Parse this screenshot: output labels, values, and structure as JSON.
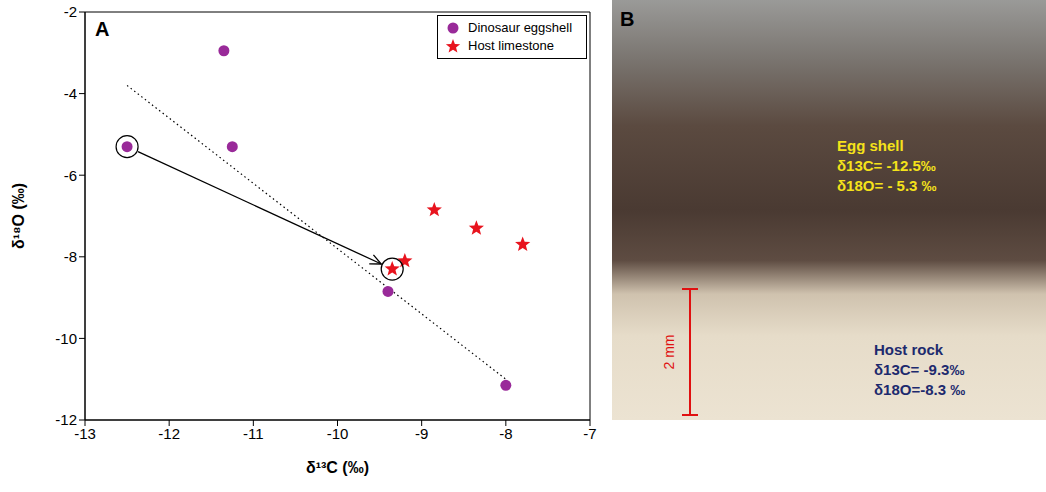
{
  "chart_data": {
    "type": "scatter",
    "panel_label": "A",
    "x_label": "δ¹³C (‰)",
    "y_label": "δ¹⁸O (‰)",
    "xlim": [
      -13,
      -7
    ],
    "xticks": [
      -13,
      -12,
      -11,
      -10,
      -9,
      -8,
      -7
    ],
    "ylim": [
      -12,
      -2
    ],
    "yticks": [
      -12,
      -10,
      -8,
      -6,
      -4,
      -2
    ],
    "legend": "upper right",
    "series": [
      {
        "name": "Dinosaur eggshell",
        "color": "#992a99",
        "marker": "circle",
        "x": [
          -12.5,
          -11.35,
          -11.25,
          -9.4,
          -8.0
        ],
        "y": [
          -5.3,
          -2.95,
          -5.3,
          -8.85,
          -11.15
        ]
      },
      {
        "name": "Host limestone",
        "color": "#e8141e",
        "marker": "star",
        "x": [
          -9.35,
          -9.2,
          -8.85,
          -8.35,
          -7.8
        ],
        "y": [
          -8.3,
          -8.1,
          -6.85,
          -7.3,
          -7.7
        ]
      }
    ],
    "trend_line": {
      "x": [
        -12.5,
        -8.0
      ],
      "y": [
        -3.8,
        -11.0
      ],
      "line_style": "dotted"
    },
    "highlighted": {
      "x": [
        -12.5,
        -9.35
      ],
      "y": [
        -5.3,
        -8.3
      ]
    },
    "arrow": {
      "from": {
        "x": -12.5,
        "y": -5.3
      },
      "to": {
        "x": -9.35,
        "y": -8.3
      }
    }
  },
  "image_panel": {
    "panel_label": "B",
    "egg_shell": {
      "title": "Egg shell",
      "lines": [
        "δ13C= -12.5‰",
        "δ18O= - 5.3 ‰"
      ]
    },
    "host_rock": {
      "title": "Host rock",
      "lines": [
        "δ13C= -9.3‰",
        "δ18O=-8.3 ‰"
      ]
    },
    "scale_bar": "2 mm"
  }
}
